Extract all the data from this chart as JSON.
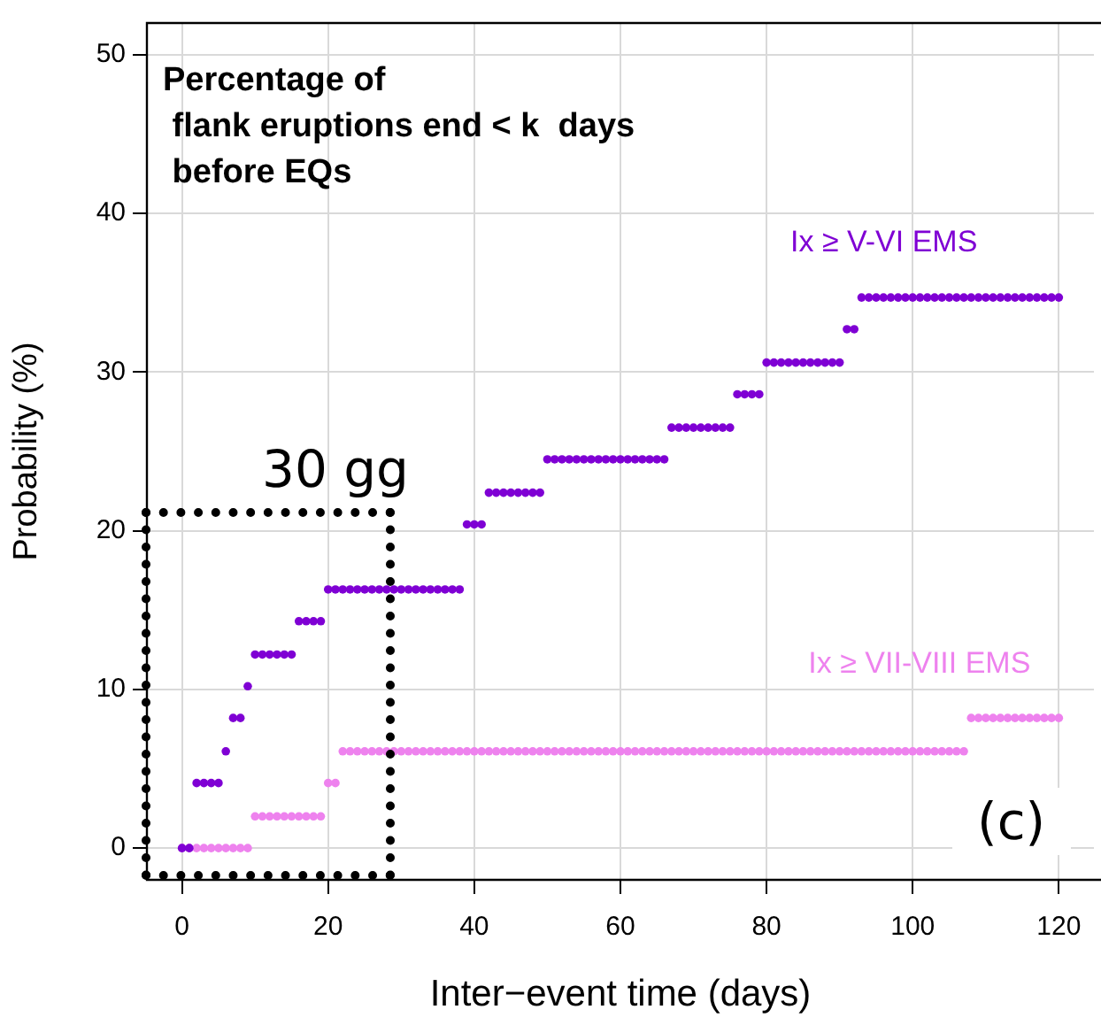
{
  "chart_data": {
    "type": "scatter",
    "title": "Percentage of\n flank eruptions end < k  days\n before EQs",
    "xlabel": "Inter−event time (days)",
    "ylabel": "Probability (%)",
    "annotations": [
      "30 gg",
      "(c)"
    ],
    "x": [
      0,
      1,
      2,
      3,
      4,
      5,
      6,
      7,
      8,
      9,
      10,
      11,
      12,
      13,
      14,
      15,
      16,
      17,
      18,
      19,
      20,
      21,
      22,
      23,
      24,
      25,
      26,
      27,
      28,
      29,
      30,
      31,
      32,
      33,
      34,
      35,
      36,
      37,
      38,
      39,
      40,
      41,
      42,
      43,
      44,
      45,
      46,
      47,
      48,
      49,
      50,
      51,
      52,
      53,
      54,
      55,
      56,
      57,
      58,
      59,
      60,
      61,
      62,
      63,
      64,
      65,
      66,
      67,
      68,
      69,
      70,
      71,
      72,
      73,
      74,
      75,
      76,
      77,
      78,
      79,
      80,
      81,
      82,
      83,
      84,
      85,
      86,
      87,
      88,
      89,
      90,
      91,
      92,
      93,
      94,
      95,
      96,
      97,
      98,
      99,
      100,
      101,
      102,
      103,
      104,
      105,
      106,
      107,
      108,
      109,
      110,
      111,
      112,
      113,
      114,
      115,
      116,
      117,
      118,
      119,
      120
    ],
    "series": [
      {
        "name": "Ix ≥ V-VI EMS",
        "color": "#7f00d4",
        "values": [
          0,
          0,
          4.1,
          4.1,
          4.1,
          4.1,
          6.1,
          8.2,
          8.2,
          10.2,
          12.2,
          12.2,
          12.2,
          12.2,
          12.2,
          12.2,
          14.3,
          14.3,
          14.3,
          14.3,
          16.3,
          16.3,
          16.3,
          16.3,
          16.3,
          16.3,
          16.3,
          16.3,
          16.3,
          16.3,
          16.3,
          16.3,
          16.3,
          16.3,
          16.3,
          16.3,
          16.3,
          16.3,
          16.3,
          20.4,
          20.4,
          20.4,
          22.4,
          22.4,
          22.4,
          22.4,
          22.4,
          22.4,
          22.4,
          22.4,
          24.5,
          24.5,
          24.5,
          24.5,
          24.5,
          24.5,
          24.5,
          24.5,
          24.5,
          24.5,
          24.5,
          24.5,
          24.5,
          24.5,
          24.5,
          24.5,
          24.5,
          26.5,
          26.5,
          26.5,
          26.5,
          26.5,
          26.5,
          26.5,
          26.5,
          26.5,
          28.6,
          28.6,
          28.6,
          28.6,
          30.6,
          30.6,
          30.6,
          30.6,
          30.6,
          30.6,
          30.6,
          30.6,
          30.6,
          30.6,
          30.6,
          32.7,
          32.7,
          34.7,
          34.7,
          34.7,
          34.7,
          34.7,
          34.7,
          34.7,
          34.7,
          34.7,
          34.7,
          34.7,
          34.7,
          34.7,
          34.7,
          34.7,
          34.7,
          34.7,
          34.7,
          34.7,
          34.7,
          34.7,
          34.7,
          34.7,
          34.7,
          34.7,
          34.7,
          34.7,
          34.7
        ]
      },
      {
        "name": "Ix ≥ VII-VIII EMS",
        "color": "#ee82ee",
        "values": [
          0,
          0,
          0,
          0,
          0,
          0,
          0,
          0,
          0,
          0,
          2.0,
          2.0,
          2.0,
          2.0,
          2.0,
          2.0,
          2.0,
          2.0,
          2.0,
          2.0,
          4.1,
          4.1,
          6.1,
          6.1,
          6.1,
          6.1,
          6.1,
          6.1,
          6.1,
          6.1,
          6.1,
          6.1,
          6.1,
          6.1,
          6.1,
          6.1,
          6.1,
          6.1,
          6.1,
          6.1,
          6.1,
          6.1,
          6.1,
          6.1,
          6.1,
          6.1,
          6.1,
          6.1,
          6.1,
          6.1,
          6.1,
          6.1,
          6.1,
          6.1,
          6.1,
          6.1,
          6.1,
          6.1,
          6.1,
          6.1,
          6.1,
          6.1,
          6.1,
          6.1,
          6.1,
          6.1,
          6.1,
          6.1,
          6.1,
          6.1,
          6.1,
          6.1,
          6.1,
          6.1,
          6.1,
          6.1,
          6.1,
          6.1,
          6.1,
          6.1,
          6.1,
          6.1,
          6.1,
          6.1,
          6.1,
          6.1,
          6.1,
          6.1,
          6.1,
          6.1,
          6.1,
          6.1,
          6.1,
          6.1,
          6.1,
          6.1,
          6.1,
          6.1,
          6.1,
          6.1,
          6.1,
          6.1,
          6.1,
          6.1,
          6.1,
          6.1,
          6.1,
          6.1,
          8.2,
          8.2,
          8.2,
          8.2,
          8.2,
          8.2,
          8.2,
          8.2,
          8.2,
          8.2,
          8.2,
          8.2,
          8.2
        ]
      }
    ],
    "xlim": [
      -4.8,
      124.8
    ],
    "xticks": [
      0,
      20,
      40,
      60,
      80,
      100,
      120
    ],
    "ylim": [
      -2,
      52
    ],
    "yticks": [
      0,
      10,
      20,
      30,
      40,
      50
    ],
    "grid": true,
    "legend": false,
    "marker": "circle"
  }
}
